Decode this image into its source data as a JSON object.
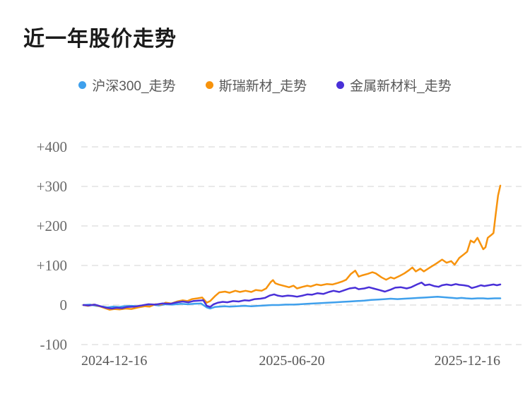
{
  "title": "近一年股价走势",
  "chart_data": {
    "type": "line",
    "title": "近一年股价走势",
    "legend_position": "top",
    "grid": {
      "horizontal": true,
      "style": "dashed"
    },
    "x_axis": {
      "tick_labels": [
        "2024-12-16",
        "2025-06-20",
        "2025-12-16"
      ],
      "unit": "day_offset_0_to_365"
    },
    "y_axis": {
      "ticks": [
        {
          "label": "+400",
          "value": 400
        },
        {
          "label": "+300",
          "value": 300
        },
        {
          "label": "+200",
          "value": 200
        },
        {
          "label": "+100",
          "value": 100
        },
        {
          "label": "0",
          "value": 0
        },
        {
          "label": "-100",
          "value": -100
        }
      ],
      "ylim": [
        -100,
        400
      ]
    },
    "series": [
      {
        "name": "沪深300_走势",
        "color": "#3FA0EC",
        "points": [
          [
            0,
            0
          ],
          [
            6,
            1
          ],
          [
            11,
            -2
          ],
          [
            17,
            -4
          ],
          [
            21,
            -6
          ],
          [
            26,
            -4
          ],
          [
            31,
            -5
          ],
          [
            35,
            -3
          ],
          [
            42,
            -2
          ],
          [
            48,
            -3
          ],
          [
            54,
            0
          ],
          [
            60,
            1
          ],
          [
            66,
            -1
          ],
          [
            72,
            2
          ],
          [
            78,
            1
          ],
          [
            85,
            3
          ],
          [
            91,
            2
          ],
          [
            97,
            3
          ],
          [
            103,
            4
          ],
          [
            108,
            -6
          ],
          [
            111,
            -9
          ],
          [
            115,
            -5
          ],
          [
            119,
            -4
          ],
          [
            124,
            -3
          ],
          [
            128,
            -4
          ],
          [
            134,
            -3
          ],
          [
            141,
            -2
          ],
          [
            147,
            -3
          ],
          [
            153,
            -2
          ],
          [
            159,
            -1
          ],
          [
            165,
            0
          ],
          [
            171,
            0
          ],
          [
            177,
            1
          ],
          [
            184,
            1
          ],
          [
            190,
            2
          ],
          [
            196,
            3
          ],
          [
            202,
            4
          ],
          [
            208,
            5
          ],
          [
            215,
            6
          ],
          [
            221,
            7
          ],
          [
            227,
            8
          ],
          [
            233,
            9
          ],
          [
            239,
            10
          ],
          [
            246,
            11
          ],
          [
            252,
            13
          ],
          [
            258,
            14
          ],
          [
            264,
            15
          ],
          [
            269,
            16
          ],
          [
            275,
            15
          ],
          [
            281,
            16
          ],
          [
            287,
            17
          ],
          [
            293,
            18
          ],
          [
            299,
            19
          ],
          [
            305,
            20
          ],
          [
            310,
            21
          ],
          [
            314,
            20
          ],
          [
            319,
            19
          ],
          [
            323,
            18
          ],
          [
            327,
            17
          ],
          [
            331,
            18
          ],
          [
            335,
            17
          ],
          [
            340,
            16
          ],
          [
            345,
            17
          ],
          [
            350,
            17
          ],
          [
            354,
            16
          ],
          [
            360,
            17
          ],
          [
            365,
            17
          ]
        ]
      },
      {
        "name": "斯瑞新材_走势",
        "color": "#F7930D",
        "points": [
          [
            0,
            0
          ],
          [
            4,
            -2
          ],
          [
            9,
            1
          ],
          [
            14,
            -3
          ],
          [
            19,
            -8
          ],
          [
            23,
            -12
          ],
          [
            27,
            -10
          ],
          [
            32,
            -11
          ],
          [
            37,
            -9
          ],
          [
            42,
            -10
          ],
          [
            48,
            -6
          ],
          [
            54,
            -3
          ],
          [
            58,
            -4
          ],
          [
            63,
            2
          ],
          [
            68,
            1
          ],
          [
            72,
            6
          ],
          [
            77,
            4
          ],
          [
            82,
            9
          ],
          [
            87,
            12
          ],
          [
            91,
            10
          ],
          [
            95,
            15
          ],
          [
            100,
            17
          ],
          [
            104,
            19
          ],
          [
            108,
            6
          ],
          [
            111,
            10
          ],
          [
            115,
            22
          ],
          [
            119,
            32
          ],
          [
            124,
            34
          ],
          [
            128,
            31
          ],
          [
            133,
            36
          ],
          [
            137,
            33
          ],
          [
            142,
            36
          ],
          [
            147,
            33
          ],
          [
            151,
            38
          ],
          [
            156,
            36
          ],
          [
            160,
            42
          ],
          [
            164,
            58
          ],
          [
            166,
            63
          ],
          [
            168,
            55
          ],
          [
            171,
            52
          ],
          [
            176,
            48
          ],
          [
            180,
            45
          ],
          [
            184,
            49
          ],
          [
            187,
            42
          ],
          [
            192,
            46
          ],
          [
            196,
            49
          ],
          [
            199,
            47
          ],
          [
            204,
            52
          ],
          [
            208,
            50
          ],
          [
            213,
            53
          ],
          [
            218,
            52
          ],
          [
            223,
            56
          ],
          [
            227,
            60
          ],
          [
            230,
            64
          ],
          [
            234,
            78
          ],
          [
            238,
            87
          ],
          [
            241,
            72
          ],
          [
            244,
            75
          ],
          [
            249,
            79
          ],
          [
            253,
            83
          ],
          [
            256,
            80
          ],
          [
            261,
            70
          ],
          [
            265,
            64
          ],
          [
            269,
            70
          ],
          [
            272,
            67
          ],
          [
            277,
            74
          ],
          [
            281,
            80
          ],
          [
            285,
            88
          ],
          [
            288,
            95
          ],
          [
            291,
            85
          ],
          [
            295,
            92
          ],
          [
            298,
            85
          ],
          [
            304,
            96
          ],
          [
            309,
            105
          ],
          [
            314,
            115
          ],
          [
            318,
            107
          ],
          [
            322,
            111
          ],
          [
            325,
            102
          ],
          [
            329,
            119
          ],
          [
            333,
            128
          ],
          [
            336,
            135
          ],
          [
            339,
            163
          ],
          [
            342,
            158
          ],
          [
            345,
            170
          ],
          [
            350,
            141
          ],
          [
            352,
            146
          ],
          [
            354,
            170
          ],
          [
            357,
            177
          ],
          [
            359,
            182
          ],
          [
            361,
            230
          ],
          [
            363,
            277
          ],
          [
            365,
            302
          ]
        ]
      },
      {
        "name": "金属新材料_走势",
        "color": "#4930D8",
        "points": [
          [
            0,
            0
          ],
          [
            5,
            -1
          ],
          [
            10,
            1
          ],
          [
            15,
            -3
          ],
          [
            20,
            -7
          ],
          [
            25,
            -9
          ],
          [
            29,
            -7
          ],
          [
            34,
            -8
          ],
          [
            38,
            -5
          ],
          [
            45,
            -4
          ],
          [
            51,
            -1
          ],
          [
            57,
            2
          ],
          [
            63,
            1
          ],
          [
            69,
            4
          ],
          [
            76,
            3
          ],
          [
            82,
            7
          ],
          [
            87,
            9
          ],
          [
            92,
            7
          ],
          [
            96,
            10
          ],
          [
            101,
            11
          ],
          [
            105,
            12
          ],
          [
            108,
            -2
          ],
          [
            111,
            -5
          ],
          [
            114,
            2
          ],
          [
            118,
            6
          ],
          [
            122,
            8
          ],
          [
            126,
            7
          ],
          [
            131,
            10
          ],
          [
            136,
            9
          ],
          [
            141,
            12
          ],
          [
            145,
            11
          ],
          [
            150,
            15
          ],
          [
            155,
            16
          ],
          [
            159,
            18
          ],
          [
            163,
            24
          ],
          [
            167,
            27
          ],
          [
            170,
            24
          ],
          [
            174,
            22
          ],
          [
            179,
            24
          ],
          [
            183,
            23
          ],
          [
            187,
            21
          ],
          [
            192,
            24
          ],
          [
            196,
            27
          ],
          [
            200,
            26
          ],
          [
            205,
            30
          ],
          [
            210,
            28
          ],
          [
            215,
            33
          ],
          [
            219,
            36
          ],
          [
            224,
            33
          ],
          [
            229,
            38
          ],
          [
            233,
            42
          ],
          [
            238,
            44
          ],
          [
            241,
            40
          ],
          [
            246,
            42
          ],
          [
            250,
            45
          ],
          [
            255,
            41
          ],
          [
            259,
            38
          ],
          [
            264,
            34
          ],
          [
            269,
            39
          ],
          [
            273,
            44
          ],
          [
            278,
            45
          ],
          [
            283,
            42
          ],
          [
            287,
            45
          ],
          [
            292,
            52
          ],
          [
            296,
            57
          ],
          [
            299,
            50
          ],
          [
            303,
            52
          ],
          [
            307,
            48
          ],
          [
            311,
            46
          ],
          [
            314,
            50
          ],
          [
            318,
            52
          ],
          [
            322,
            50
          ],
          [
            326,
            53
          ],
          [
            329,
            51
          ],
          [
            333,
            50
          ],
          [
            337,
            48
          ],
          [
            340,
            43
          ],
          [
            344,
            46
          ],
          [
            348,
            50
          ],
          [
            351,
            48
          ],
          [
            355,
            50
          ],
          [
            359,
            52
          ],
          [
            362,
            50
          ],
          [
            365,
            52
          ]
        ]
      }
    ]
  }
}
